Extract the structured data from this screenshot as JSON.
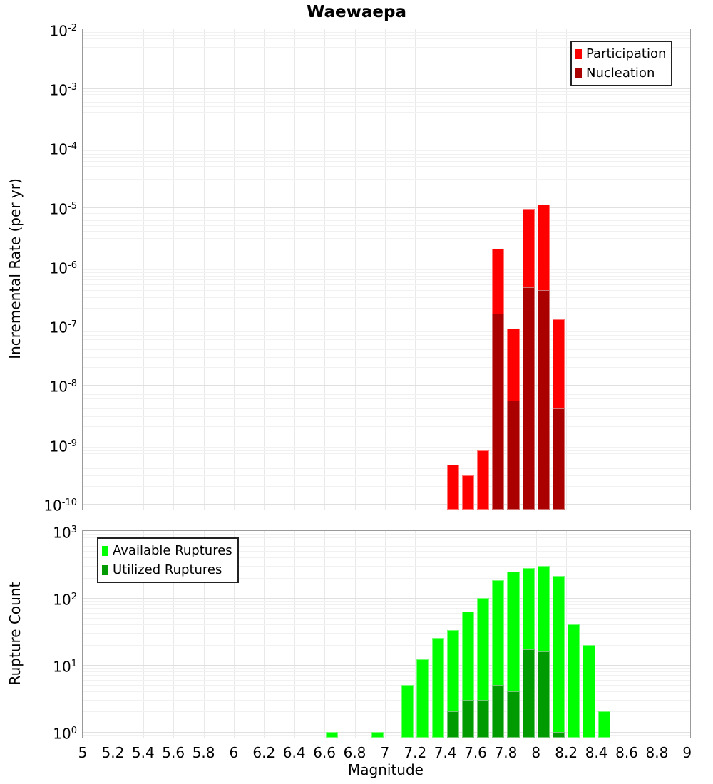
{
  "title": "Waewaepa",
  "x_axis_label": "Magnitude",
  "chart_data": [
    {
      "type": "bar",
      "panel": "top",
      "title": "Waewaepa",
      "xlabel": "Magnitude",
      "ylabel": "Incremental Rate (per yr)",
      "ylog": true,
      "grid": true,
      "xlim": [
        5,
        9.02
      ],
      "ylim_exp": [
        -10.1,
        -2
      ],
      "bin_width": 0.1,
      "x_ticks": [
        "5",
        "5.2",
        "5.4",
        "5.6",
        "5.8",
        "6",
        "6.2",
        "6.4",
        "6.6",
        "6.8",
        "7",
        "7.2",
        "7.4",
        "7.6",
        "7.8",
        "8",
        "8.2",
        "8.4",
        "8.6",
        "8.8",
        "9"
      ],
      "y_tick_exponents": [
        -2,
        -3,
        -4,
        -5,
        -6,
        -7,
        -8,
        -9,
        -10
      ],
      "show_x_tick_labels": false,
      "legend": {
        "position": "top-right",
        "entries": [
          {
            "label": "Participation",
            "color": "#ff0000"
          },
          {
            "label": "Nucleation",
            "color": "#aa0000"
          }
        ]
      },
      "series": [
        {
          "name": "Participation",
          "color": "#ff0000",
          "x": [
            7.45,
            7.55,
            7.65,
            7.75,
            7.85,
            7.95,
            8.05,
            8.15
          ],
          "y": [
            4.5e-10,
            3e-10,
            8e-10,
            2e-06,
            9e-08,
            9.5e-06,
            1.1e-05,
            1.3e-07
          ]
        },
        {
          "name": "Nucleation",
          "color": "#aa0000",
          "x": [
            7.75,
            7.85,
            7.95,
            8.05,
            8.15
          ],
          "y": [
            1.6e-07,
            5.5e-09,
            4.5e-07,
            4e-07,
            4e-09
          ]
        }
      ]
    },
    {
      "type": "bar",
      "panel": "bottom",
      "xlabel": "Magnitude",
      "ylabel": "Rupture Count",
      "ylog": true,
      "grid": true,
      "xlim": [
        5,
        9.02
      ],
      "ylim_exp": [
        -0.09,
        3
      ],
      "bin_width": 0.1,
      "x_ticks": [
        "5",
        "5.2",
        "5.4",
        "5.6",
        "5.8",
        "6",
        "6.2",
        "6.4",
        "6.6",
        "6.8",
        "7",
        "7.2",
        "7.4",
        "7.6",
        "7.8",
        "8",
        "8.2",
        "8.4",
        "8.6",
        "8.8",
        "9"
      ],
      "y_tick_exponents": [
        3,
        2,
        1,
        0
      ],
      "show_x_tick_labels": true,
      "legend": {
        "position": "top-left",
        "entries": [
          {
            "label": "Available Ruptures",
            "color": "#00ff00"
          },
          {
            "label": "Utilized Ruptures",
            "color": "#009b00"
          }
        ]
      },
      "series": [
        {
          "name": "Available Ruptures",
          "color": "#00ff00",
          "x": [
            6.65,
            6.95,
            7.15,
            7.25,
            7.35,
            7.45,
            7.55,
            7.65,
            7.75,
            7.85,
            7.95,
            8.05,
            8.15,
            8.25,
            8.35,
            8.45
          ],
          "y": [
            1,
            1,
            5,
            12,
            25,
            33,
            62,
            100,
            185,
            250,
            280,
            300,
            215,
            40,
            20,
            2
          ]
        },
        {
          "name": "Utilized Ruptures",
          "color": "#009b00",
          "x": [
            7.45,
            7.55,
            7.65,
            7.75,
            7.85,
            7.95,
            8.05,
            8.15
          ],
          "y": [
            2,
            3,
            3,
            5,
            4,
            17,
            16,
            1
          ]
        }
      ]
    }
  ]
}
